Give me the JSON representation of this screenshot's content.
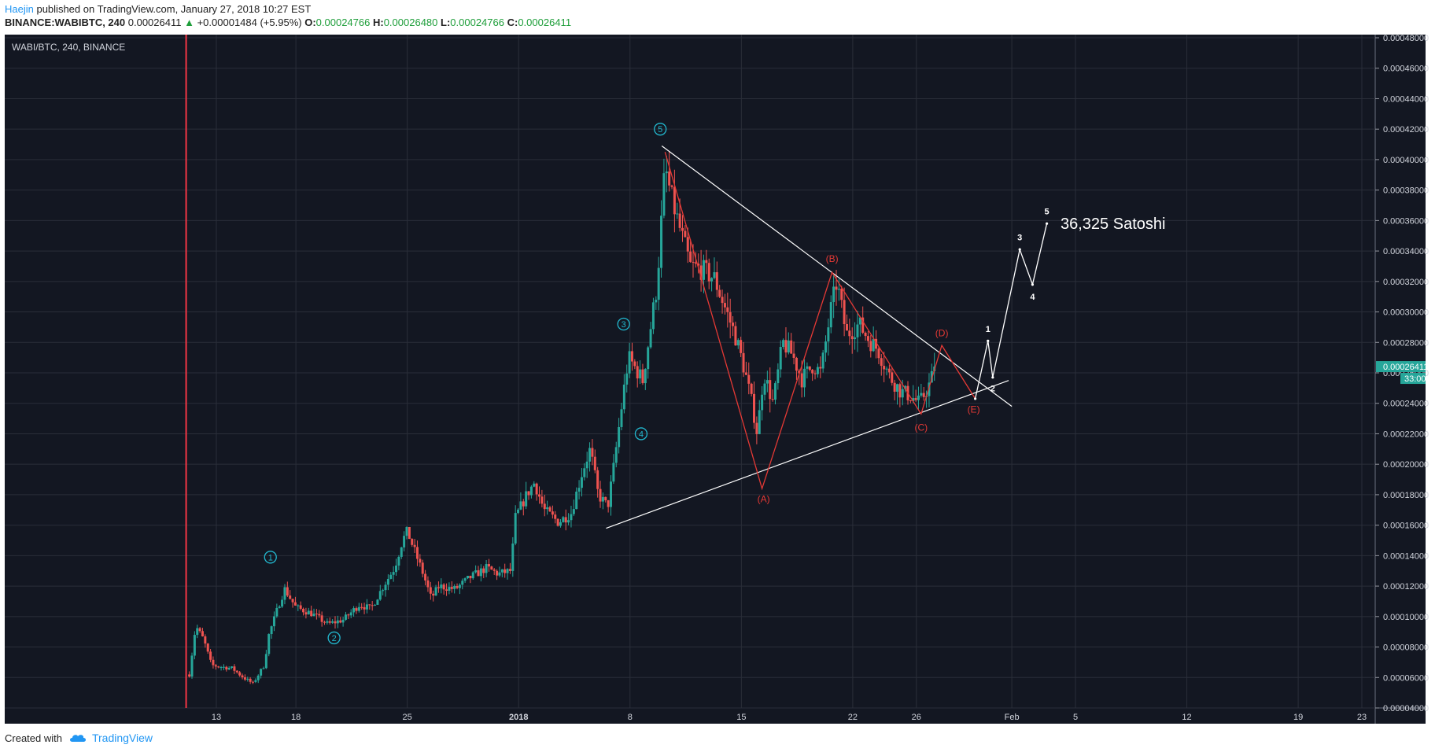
{
  "header": {
    "author": "Haejin",
    "published_text": " published on TradingView.com, January 27, 2018 10:27 EST",
    "symbol": "BINANCE:WABIBTC, 240",
    "last": "0.00026411",
    "change": "+0.00001484 (+5.95%)",
    "o_label": "O:",
    "o": "0.00024766",
    "h_label": "H:",
    "h": "0.00026480",
    "l_label": "L:",
    "l": "0.00024766",
    "c_label": "C:",
    "c": "0.00026411"
  },
  "footer": {
    "created_with": "Created with",
    "brand": "TradingView"
  },
  "colors": {
    "background": "#131722",
    "grid": "#2a2e39",
    "up": "#26a69a",
    "down": "#ef5350",
    "wave": "#22b8cf",
    "triangle": "#ffffff",
    "abcde": "#e53935",
    "price_tag": "#26a69a"
  },
  "chart_data": {
    "type": "candlestick",
    "title": "WABI/BTC, 240, BINANCE",
    "ylim": [
      4e-05,
      0.00048
    ],
    "y_ticks": [
      "0.00004000",
      "0.00006000",
      "0.00008000",
      "0.00010000",
      "0.00012000",
      "0.00014000",
      "0.00016000",
      "0.00018000",
      "0.00020000",
      "0.00022000",
      "0.00024000",
      "0.00026000",
      "0.00028000",
      "0.00030000",
      "0.00032000",
      "0.00034000",
      "0.00036000",
      "0.00038000",
      "0.00040000",
      "0.00042000",
      "0.00044000",
      "0.00046000",
      "0.00048000"
    ],
    "x_ticks": [
      {
        "day": 13,
        "label": "13"
      },
      {
        "day": 18,
        "label": "18"
      },
      {
        "day": 25,
        "label": "25"
      },
      {
        "day": 32,
        "label": "2018"
      },
      {
        "day": 39,
        "label": "8"
      },
      {
        "day": 46,
        "label": "15"
      },
      {
        "day": 53,
        "label": "22"
      },
      {
        "day": 57,
        "label": "26"
      },
      {
        "day": 63,
        "label": "Feb"
      },
      {
        "day": 67,
        "label": "5"
      },
      {
        "day": 74,
        "label": "12"
      },
      {
        "day": 81,
        "label": "19"
      },
      {
        "day": 85,
        "label": "23"
      }
    ],
    "price_anchors": [
      [
        11.3,
        6.2e-05
      ],
      [
        11.7,
        9.4e-05
      ],
      [
        12.2,
        8.5e-05
      ],
      [
        12.7,
        6.8e-05
      ],
      [
        14.0,
        6.6e-05
      ],
      [
        14.7,
        6e-05
      ],
      [
        15.3,
        5.6e-05
      ],
      [
        16.0,
        6.8e-05
      ],
      [
        16.3,
        8.8e-05
      ],
      [
        17.0,
        0.00011
      ],
      [
        17.3,
        0.000118
      ],
      [
        18.0,
        0.000106
      ],
      [
        19.0,
        0.000102
      ],
      [
        20.0,
        9.5e-05
      ],
      [
        21.0,
        9.8e-05
      ],
      [
        22.0,
        0.000108
      ],
      [
        22.7,
        0.000105
      ],
      [
        23.5,
        0.00012
      ],
      [
        24.2,
        0.000132
      ],
      [
        24.7,
        0.00015
      ],
      [
        25.0,
        0.000156
      ],
      [
        25.5,
        0.000142
      ],
      [
        26.0,
        0.000128
      ],
      [
        26.5,
        0.000112
      ],
      [
        27.0,
        0.00012
      ],
      [
        28.0,
        0.000118
      ],
      [
        29.0,
        0.000126
      ],
      [
        30.0,
        0.000132
      ],
      [
        30.7,
        0.000128
      ],
      [
        31.5,
        0.00013
      ],
      [
        31.8,
        0.000165
      ],
      [
        32.5,
        0.00018
      ],
      [
        33.0,
        0.000188
      ],
      [
        33.6,
        0.00017
      ],
      [
        34.5,
        0.000162
      ],
      [
        35.3,
        0.000168
      ],
      [
        36.0,
        0.000195
      ],
      [
        36.5,
        0.00021
      ],
      [
        37.0,
        0.00018
      ],
      [
        37.6,
        0.000172
      ],
      [
        38.0,
        0.0002
      ],
      [
        38.5,
        0.00024
      ],
      [
        38.9,
        0.00027
      ],
      [
        39.4,
        0.000262
      ],
      [
        39.8,
        0.000255
      ],
      [
        40.3,
        0.00029
      ],
      [
        40.7,
        0.000318
      ],
      [
        41.2,
        0.000395
      ],
      [
        41.6,
        0.000375
      ],
      [
        42.2,
        0.000352
      ],
      [
        42.8,
        0.00033
      ],
      [
        43.5,
        0.000328
      ],
      [
        44.3,
        0.000322
      ],
      [
        45.0,
        0.000302
      ],
      [
        45.6,
        0.000285
      ],
      [
        46.2,
        0.000262
      ],
      [
        46.7,
        0.000238
      ],
      [
        47.0,
        0.00022
      ],
      [
        47.4,
        0.00026
      ],
      [
        48.0,
        0.00024
      ],
      [
        48.6,
        0.00028
      ],
      [
        49.2,
        0.000272
      ],
      [
        49.8,
        0.000256
      ],
      [
        50.5,
        0.000265
      ],
      [
        51.0,
        0.00026
      ],
      [
        51.6,
        0.0003
      ],
      [
        52.0,
        0.00032
      ],
      [
        52.6,
        0.000285
      ],
      [
        53.4,
        0.000292
      ],
      [
        54.0,
        0.000282
      ],
      [
        54.6,
        0.000275
      ],
      [
        55.3,
        0.000258
      ],
      [
        56.0,
        0.000248
      ],
      [
        56.6,
        0.000245
      ],
      [
        57.2,
        0.00024
      ],
      [
        57.8,
        0.000252
      ],
      [
        58.2,
        0.000264
      ]
    ],
    "wave_labels": [
      {
        "label": "1",
        "day": 16.4,
        "y": 0.000139
      },
      {
        "label": "2",
        "day": 20.4,
        "y": 8.6e-05
      },
      {
        "label": "3",
        "day": 38.6,
        "y": 0.000292
      },
      {
        "label": "4",
        "day": 39.7,
        "y": 0.00022
      },
      {
        "label": "5",
        "day": 40.9,
        "y": 0.00042
      }
    ],
    "triangle_lines": [
      {
        "from": [
          41.0,
          0.000409
        ],
        "to": [
          63.0,
          0.000238
        ]
      },
      {
        "from": [
          37.5,
          0.000158
        ],
        "to": [
          62.8,
          0.000255
        ]
      }
    ],
    "abcde_path": [
      [
        41.2,
        0.000405
      ],
      [
        47.3,
        0.000184
      ],
      [
        51.7,
        0.000326
      ],
      [
        57.3,
        0.000233
      ],
      [
        58.6,
        0.000278
      ],
      [
        60.7,
        0.000243
      ]
    ],
    "abcde_labels": [
      {
        "label": "(A)",
        "day": 47.4,
        "y": 0.000177
      },
      {
        "label": "(B)",
        "day": 51.7,
        "y": 0.000335
      },
      {
        "label": "(C)",
        "day": 57.3,
        "y": 0.000224
      },
      {
        "label": "(D)",
        "day": 58.6,
        "y": 0.000286
      },
      {
        "label": "(E)",
        "day": 60.6,
        "y": 0.000236
      }
    ],
    "projection_path": [
      [
        60.7,
        0.000243
      ],
      [
        61.5,
        0.000281
      ],
      [
        61.8,
        0.000257
      ],
      [
        63.5,
        0.000341
      ],
      [
        64.3,
        0.000318
      ],
      [
        65.2,
        0.000358
      ]
    ],
    "projection_labels": [
      {
        "label": "1",
        "day": 61.5,
        "y": 0.000289
      },
      {
        "label": "2",
        "day": 61.8,
        "y": 0.00025
      },
      {
        "label": "3",
        "day": 63.5,
        "y": 0.000349
      },
      {
        "label": "4",
        "day": 64.3,
        "y": 0.00031
      },
      {
        "label": "5",
        "day": 65.2,
        "y": 0.000366
      }
    ],
    "target_annotation": "36,325 Satoshi",
    "vertical_marker_day": 11.1,
    "last_price_label": "0.00026411",
    "countdown_label": "33:00"
  }
}
